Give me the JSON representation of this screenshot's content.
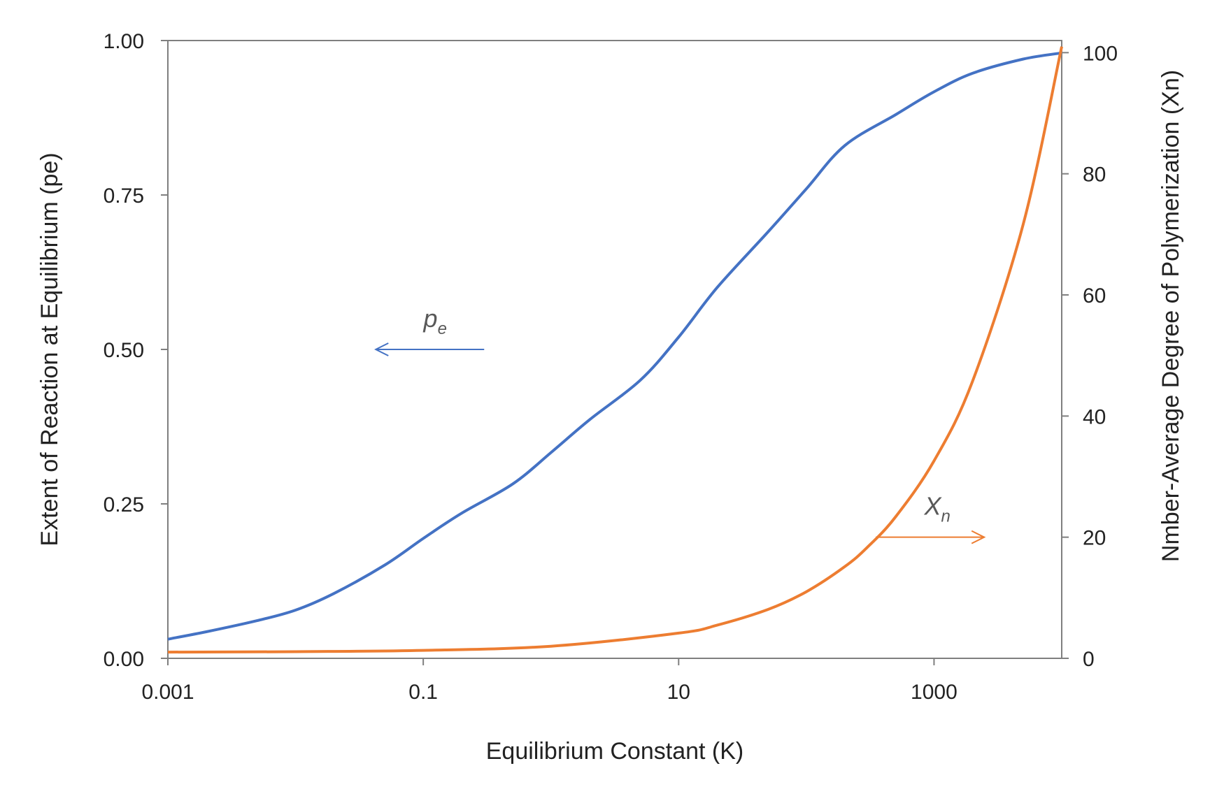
{
  "chart_data": {
    "type": "line",
    "xlabel": "Equilibrium Constant (K)",
    "ylabel": "Extent of Reaction at Equilibrium (pe)",
    "y2label": "Nmber-Average Degree of Polymerization (Xn)",
    "xscale": "log",
    "xlim": [
      0.001,
      10000
    ],
    "ylim": [
      0,
      1
    ],
    "y2lim": [
      0,
      102
    ],
    "xticks": [
      "0.001",
      "0.1",
      "10",
      "1000"
    ],
    "xtick_values": [
      0.001,
      0.1,
      10,
      1000
    ],
    "yticks": [
      "0.00",
      "0.25",
      "0.50",
      "0.75",
      "1.00"
    ],
    "ytick_values": [
      0,
      0.25,
      0.5,
      0.75,
      1.0
    ],
    "y2ticks": [
      "0",
      "20",
      "40",
      "60",
      "80",
      "100"
    ],
    "y2tick_values": [
      0,
      20,
      40,
      60,
      80,
      100
    ],
    "grid": false,
    "series": [
      {
        "label": "p",
        "label_sub": "e",
        "axis": "left",
        "color": "#4472C4",
        "annotation_direction": "left",
        "annotation_at": [
          0.3,
          0.5
        ],
        "x": [
          0.001,
          0.002,
          0.005,
          0.01,
          0.02,
          0.05,
          0.1,
          0.2,
          0.5,
          1,
          2,
          5,
          10,
          20,
          50,
          100,
          200,
          500,
          1000,
          2000,
          5000,
          10000
        ],
        "y": [
          0.031,
          0.043,
          0.061,
          0.078,
          0.105,
          0.151,
          0.194,
          0.235,
          0.282,
          0.333,
          0.386,
          0.45,
          0.52,
          0.6,
          0.69,
          0.76,
          0.83,
          0.88,
          0.917,
          0.947,
          0.97,
          0.98
        ]
      },
      {
        "label": "X",
        "label_sub": "n",
        "axis": "right",
        "color": "#ED7D31",
        "annotation_direction": "right",
        "annotation_at": [
          350,
          20
        ],
        "x": [
          0.001,
          0.01,
          0.1,
          1,
          10,
          20,
          50,
          100,
          200,
          300,
          500,
          1000,
          2000,
          5000,
          10000
        ],
        "y": [
          1.03,
          1.1,
          1.32,
          2,
          4.16,
          5.47,
          8.07,
          11,
          15.14,
          18.32,
          23.36,
          32.6,
          45.72,
          71.7,
          101
        ]
      }
    ]
  }
}
